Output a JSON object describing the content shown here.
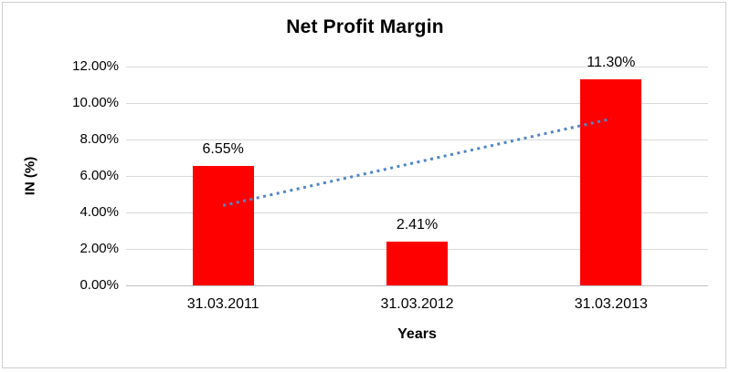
{
  "chart_data": {
    "type": "bar",
    "title": "Net Profit Margin",
    "xlabel": "Years",
    "ylabel": "IN (%)",
    "categories": [
      "31.03.2011",
      "31.03.2012",
      "31.03.2013"
    ],
    "values": [
      6.55,
      2.41,
      11.3
    ],
    "data_labels": [
      "6.55%",
      "2.41%",
      "11.30%"
    ],
    "ylim": [
      0,
      12
    ],
    "yticks": [
      0,
      2,
      4,
      6,
      8,
      10,
      12
    ],
    "ytick_labels": [
      "0.00%",
      "2.00%",
      "4.00%",
      "6.00%",
      "8.00%",
      "10.00%",
      "12.00%"
    ],
    "grid": true,
    "legend": "none",
    "bar_color": "#ff0000",
    "trendline": {
      "type": "linear",
      "start_value": 4.38,
      "end_value": 9.13,
      "color": "#4f86c6",
      "style": "dotted"
    }
  }
}
